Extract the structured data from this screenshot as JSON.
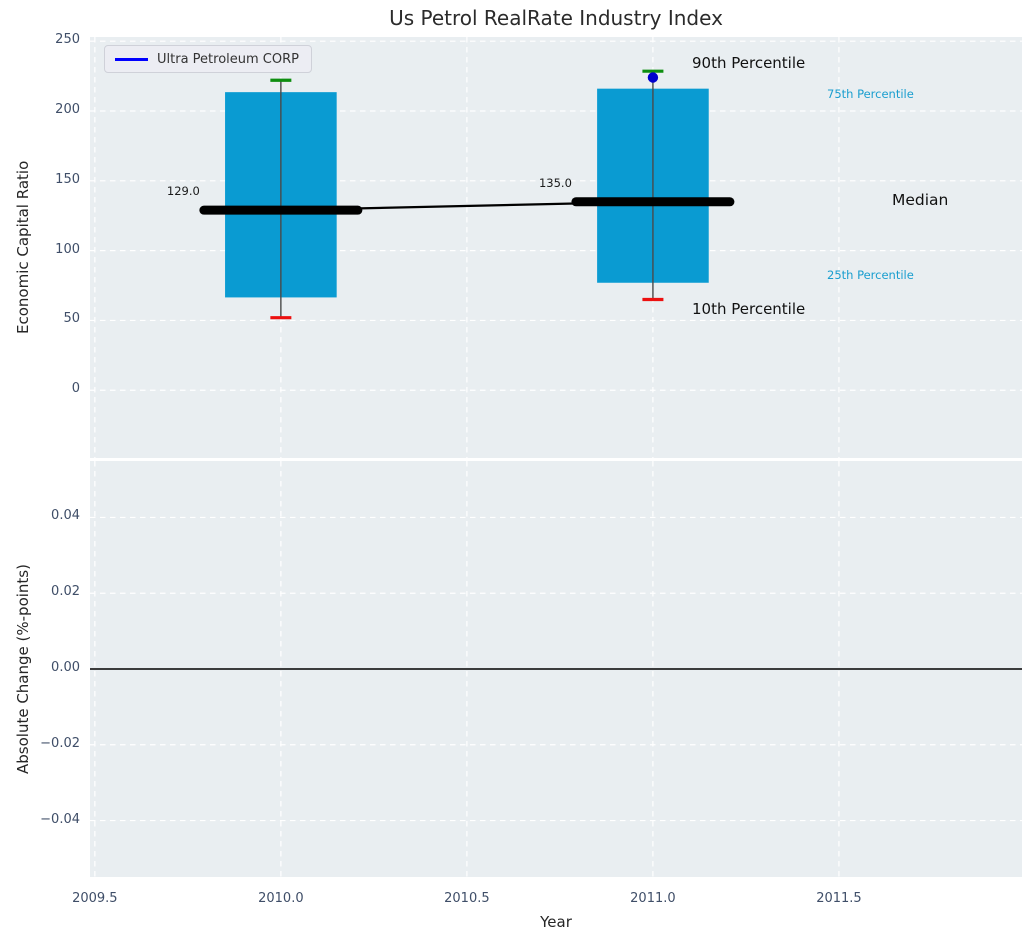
{
  "title": "Us Petrol RealRate Industry Index",
  "legend": {
    "label": "Ultra Petroleum CORP"
  },
  "annotations": {
    "p90": "90th Percentile",
    "p75": "75th Percentile",
    "median": "Median",
    "p25": "25th Percentile",
    "p10": "10th Percentile"
  },
  "colors": {
    "plot_bg": "#e9eef1",
    "grid": "#ffffff",
    "box_fill": "#0a9bd2",
    "p90_cap": "#0e8e10",
    "p10_cap": "#ec1010",
    "whisker": "#4a4a4a",
    "median_line": "#000000",
    "company_dot": "#0000cd",
    "legend_line": "#0000ff",
    "percentile_text": "#1a9ecf",
    "tick_text": "#3f4e68",
    "zero_line": "#000000"
  },
  "chart_data": [
    {
      "type": "box-whisker",
      "title": "Us Petrol RealRate Industry Index",
      "ylabel": "Economic Capital Ratio",
      "xlabel": "",
      "xlim": [
        2009.487,
        2011.992
      ],
      "ylim": [
        -48.5,
        253.0
      ],
      "grid": "white dashed",
      "legend_position": "upper left",
      "xticks": [
        2009.5,
        2010.0,
        2010.5,
        2011.0,
        2011.5
      ],
      "xtick_labels_visible": false,
      "yticks": [
        0,
        50,
        100,
        150,
        200,
        250
      ],
      "ytick_labels": [
        "0",
        "50",
        "100",
        "150",
        "200",
        "250"
      ],
      "boxes": [
        {
          "x": 2010.0,
          "p10": 52.0,
          "p25": 66.5,
          "median": 129.0,
          "p75": 213.5,
          "p90": 222.0,
          "median_label": "129.0"
        },
        {
          "x": 2011.0,
          "p10": 65.0,
          "p25": 77.0,
          "median": 135.0,
          "p75": 216.0,
          "p90": 228.5,
          "median_label": "135.0"
        }
      ],
      "series": [
        {
          "name": "Ultra Petroleum CORP",
          "x": [
            2011.0
          ],
          "y": [
            224.0
          ]
        }
      ]
    },
    {
      "type": "line",
      "title": "",
      "ylabel": "Absolute Change (%-points)",
      "xlabel": "Year",
      "xlim": [
        2009.487,
        2011.992
      ],
      "ylim": [
        -0.0549,
        0.0549
      ],
      "grid": "white dashed",
      "xticks": [
        2009.5,
        2010.0,
        2010.5,
        2011.0,
        2011.5
      ],
      "xtick_labels": [
        "2009.5",
        "2010.0",
        "2010.5",
        "2011.0",
        "2011.5"
      ],
      "xtick_labels_visible": true,
      "yticks": [
        0.04,
        0.02,
        0.0,
        -0.02,
        -0.04
      ],
      "ytick_labels": [
        "0.04",
        "0.02",
        "0.00",
        "−0.02",
        "−0.04"
      ],
      "zero_line": 0.0,
      "series": []
    }
  ]
}
